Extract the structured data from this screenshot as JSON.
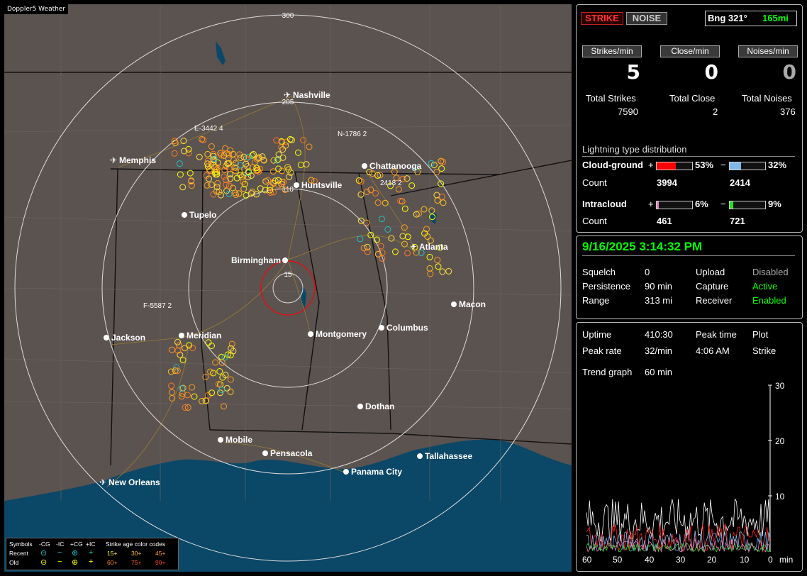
{
  "app": {
    "title": "Doppler5 Weather"
  },
  "map": {
    "rings": [
      {
        "label": "300"
      },
      {
        "label": "205"
      },
      {
        "label": "110"
      },
      {
        "label": "15"
      }
    ],
    "cities": [
      {
        "name": "Nashville",
        "marker": "airport"
      },
      {
        "name": "Memphis",
        "marker": "airport"
      },
      {
        "name": "Chattanooga",
        "marker": "dot"
      },
      {
        "name": "Huntsville",
        "marker": "dot"
      },
      {
        "name": "Tupelo",
        "marker": "dot"
      },
      {
        "name": "Atlanta",
        "marker": "airport"
      },
      {
        "name": "Birmingham",
        "marker": "dot"
      },
      {
        "name": "Macon",
        "marker": "dot"
      },
      {
        "name": "Jackson",
        "marker": "dot"
      },
      {
        "name": "Meridian",
        "marker": "dot"
      },
      {
        "name": "Montgomery",
        "marker": "dot"
      },
      {
        "name": "Columbus",
        "marker": "dot"
      },
      {
        "name": "Dothan",
        "marker": "dot"
      },
      {
        "name": "Mobile",
        "marker": "dot"
      },
      {
        "name": "Pensacola",
        "marker": "dot"
      },
      {
        "name": "Tallahassee",
        "marker": "dot"
      },
      {
        "name": "Panama City",
        "marker": "dot"
      },
      {
        "name": "New Orleans",
        "marker": "airport"
      }
    ],
    "storm_labels": [
      "E-3442 4",
      "N-1786 2",
      "F-5587 2",
      "2418 2"
    ],
    "legend": {
      "symbols_title": "Symbols",
      "cols": [
        "-CG",
        "-IC",
        "+CG",
        "+IC"
      ],
      "age_title": "Strike age color codes",
      "recent_label": "Recent",
      "old_label": "Old",
      "recent_ages": [
        "15+",
        "30+",
        "45+"
      ],
      "old_ages": [
        "60+",
        "75+",
        "90+"
      ]
    }
  },
  "panel": {
    "strike_btn": "STRIKE",
    "noise_btn": "NOISE",
    "bearing": "Bng 321°",
    "distance": "165mi",
    "strikes_min_label": "Strikes/min",
    "close_min_label": "Close/min",
    "noises_min_label": "Noises/min",
    "strikes_min": "5",
    "close_min": "0",
    "noises_min": "0",
    "total_strikes_label": "Total Strikes",
    "total_close_label": "Total Close",
    "total_noises_label": "Total Noises",
    "total_strikes": "7590",
    "total_close": "2",
    "total_noises": "376",
    "dist_title": "Lightning type distribution",
    "cg_label": "Cloud-ground",
    "ic_label": "Intracloud",
    "count_label": "Count",
    "plus": "+",
    "minus": "−",
    "cg_pos_pct": "53%",
    "cg_neg_pct": "32%",
    "cg_pos_count": "3994",
    "cg_neg_count": "2414",
    "ic_pos_pct": "6%",
    "ic_neg_pct": "9%",
    "ic_pos_count": "461",
    "ic_neg_count": "721",
    "bars": {
      "cg_pos": 0.53,
      "cg_neg": 0.32,
      "ic_pos": 0.06,
      "ic_neg": 0.09
    }
  },
  "status": {
    "datetime": "9/16/2025 3:14:32 PM",
    "squelch_label": "Squelch",
    "squelch": "0",
    "persistence_label": "Persistence",
    "persistence": "90 min",
    "range_label": "Range",
    "range": "313 mi",
    "upload_label": "Upload",
    "upload": "Disabled",
    "capture_label": "Capture",
    "capture": "Active",
    "receiver_label": "Receiver",
    "receiver": "Enabled"
  },
  "trend": {
    "uptime_label": "Uptime",
    "uptime": "410:30",
    "peak_time_label": "Peak time",
    "peak_time": "4:06 AM",
    "plot_label": "Plot",
    "plot": "Strike",
    "peak_rate_label": "Peak rate",
    "peak_rate": "32/min",
    "trend_graph_label": "Trend graph",
    "trend_graph": "60 min",
    "x_ticks": [
      "60",
      "50",
      "40",
      "30",
      "20",
      "10",
      "0"
    ],
    "x_unit": "min",
    "y_ticks": [
      "30",
      "20",
      "10"
    ]
  },
  "colors": {
    "accent_green": "#00ff00",
    "strike_red": "#ff2020",
    "map_bg": "#5b5350",
    "water": "#0b4766"
  }
}
